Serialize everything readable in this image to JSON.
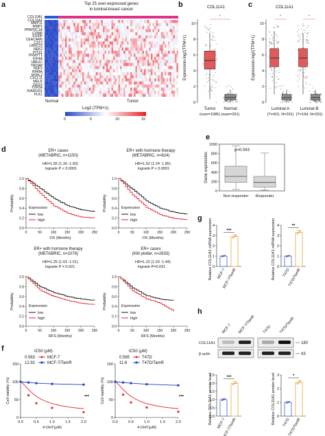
{
  "panel_letters": [
    "a",
    "b",
    "c",
    "d",
    "e",
    "f",
    "g",
    "h"
  ],
  "a": {
    "title_line1": "Top 25 over-expressed genes",
    "title_line2": "in luminal-breast cancer",
    "genes": [
      "COL10A1",
      "COL11A1",
      "MMP11",
      "MMP1",
      "PPAPDC1A",
      "COMP",
      "S100P",
      "CEACAM6",
      "CST2",
      "LRRC15",
      "NEK2",
      "PITX1",
      "PKMYT1",
      "KIF4A",
      "UBE2C",
      "TROAP",
      "NUF2",
      "INHBA",
      "MYBL2",
      "CXCL11",
      "MELK",
      "ISG15",
      "TOP2A",
      "KIAA0101",
      "PLK1"
    ],
    "group_normal": "Normal",
    "group_tumor": "Tumor",
    "legend_title": "Log2 (TPM+1)",
    "legend_ticks": [
      "0",
      "5",
      "10",
      "15"
    ],
    "colors": {
      "normal_bar": "#1f5fd6",
      "tumor_bar": "#e0308a",
      "low": "#2a49c8",
      "high": "#e8202a"
    }
  },
  "b": {
    "title": "COL11A1",
    "ylabel": "Expression-log2(TPM+1)",
    "yticks": [
      "0",
      "2",
      "4",
      "6",
      "8",
      "10"
    ],
    "groups": [
      {
        "name": "Tumor",
        "n": "(num=1085)"
      },
      {
        "name": "Normal",
        "n": "(num=291)"
      }
    ],
    "star": "*"
  },
  "c": {
    "title": "COL11A1",
    "ylabel": "Expression-log2(TPM+1)",
    "yticks": [
      "0",
      "2",
      "4",
      "6",
      "8",
      "10"
    ],
    "groups": [
      {
        "name": "Luminal A",
        "n": "(T=415, N=291)"
      },
      {
        "name": "Luminal B",
        "n": "(T=194, N=291)"
      }
    ],
    "star": "*"
  },
  "e": {
    "ylabel": "Gene expression",
    "pvalue": "p=0.043",
    "yticks": [
      "0",
      "200",
      "400",
      "600",
      "800",
      "1000"
    ],
    "groups": [
      "Non-responder",
      "Responder"
    ]
  },
  "d": {
    "km": [
      {
        "title1": "ER+ cases",
        "title2": "(METABRIC, n=1150)",
        "hr": "HR=1.55 (1.30 -1.83)",
        "logrank": "logrank P < 0.0001",
        "xlabel": "OS (Months)"
      },
      {
        "title1": "ER+ with hormone therapy",
        "title2": "(METABRIC, n=824)",
        "hr": "HR=1.52 (1.24 -1.85)",
        "logrank": "logrank P < 0.0001",
        "xlabel": "OS (Months)"
      },
      {
        "title1": "ER+ with hormone therapy",
        "title2": "(METABRIC, n=1076)",
        "hr": "HR=1.25 (1.03 -1.51)",
        "logrank": "logrank P = 0.021",
        "xlabel": "RFS (Months)"
      },
      {
        "title1": "ER+ cases",
        "title2": "(KM plotter, n=2633)",
        "hr": "HR=1.22 (1.03 -1.44)",
        "logrank": "logrank P=0.021",
        "xlabel": "RFS (Months)"
      }
    ],
    "ylabel": "Probability",
    "yticks": [
      "0.0",
      "0.2",
      "0.4",
      "0.6",
      "0.8",
      "1.0"
    ],
    "xticks": [
      "0",
      "50",
      "100",
      "150",
      "200",
      "250"
    ],
    "legend_title": "Expression",
    "legend_low": "low",
    "legend_high": "high"
  },
  "f": {
    "ylabel": "Cell viability (%)",
    "xlabel": "4-OHT(μM)",
    "yticks": [
      "0",
      "50",
      "100",
      "150"
    ],
    "xticks": [
      "0.0",
      "0.5",
      "1.0",
      "1.5",
      "2.0"
    ],
    "stars": "***",
    "left": {
      "ic50": "IC50 (μM)",
      "row1_val": "0.563",
      "row1_name": "MCF-7",
      "row2_val": "12.92",
      "row2_name": "MCF-7/TamR"
    },
    "right": {
      "ic50": "IC50 (μM)",
      "row1_val": "0.565",
      "row1_name": "T47D",
      "row2_val": "11.6",
      "row2_name": "T47D/TamR"
    }
  },
  "g": {
    "ylabel": "Relative COL11A1 mRNA expression",
    "left": {
      "labels": [
        "MCF-7",
        "MCF-7/TamR"
      ],
      "yticks": [
        "0",
        "1",
        "2",
        "3",
        "4"
      ],
      "stars": "***",
      "values": [
        1.0,
        2.9
      ]
    },
    "right": {
      "labels": [
        "T47D",
        "T47D/TamR"
      ],
      "yticks": [
        "0",
        "1",
        "2",
        "3",
        "4"
      ],
      "stars": "**",
      "values": [
        1.0,
        3.3
      ]
    }
  },
  "h": {
    "lanes": [
      "MCF-7",
      "MCF-7/TamR",
      "T47D",
      "T47D/TamR"
    ],
    "bands": [
      "COL11A1",
      "β-actin"
    ],
    "kda": [
      "180",
      "43"
    ],
    "ylabel": "Relative COL11A1 protein level",
    "left": {
      "labels": [
        "MCF-7",
        "MCF-7/TamR"
      ],
      "yticks": [
        "0.0",
        "0.5",
        "1.0",
        "1.5",
        "2.0",
        "2.5"
      ],
      "stars": "***",
      "values": [
        1.0,
        1.98
      ]
    },
    "right": {
      "labels": [
        "T47D",
        "T47D/TamR"
      ],
      "yticks": [
        "0",
        "1",
        "2",
        "3"
      ],
      "stars": "*",
      "values": [
        1.0,
        2.45
      ]
    }
  },
  "chart_data": [
    {
      "type": "line",
      "title": "ER+ cases (METABRIC, n=1150)",
      "xlabel": "OS (Months)",
      "ylabel": "Probability",
      "xlim": [
        0,
        250
      ],
      "ylim": [
        0,
        1
      ],
      "series": [
        {
          "name": "low",
          "x": [
            0,
            50,
            100,
            150,
            200,
            250
          ],
          "y": [
            1.0,
            0.8,
            0.6,
            0.45,
            0.37,
            0.33
          ]
        },
        {
          "name": "high",
          "x": [
            0,
            50,
            100,
            150,
            200,
            250
          ],
          "y": [
            1.0,
            0.7,
            0.45,
            0.3,
            0.22,
            0.2
          ]
        }
      ]
    },
    {
      "type": "line",
      "title": "ER+ with hormone therapy (METABRIC, n=824)",
      "xlabel": "OS (Months)",
      "ylabel": "Probability",
      "xlim": [
        0,
        250
      ],
      "ylim": [
        0,
        1
      ],
      "series": [
        {
          "name": "low",
          "x": [
            0,
            50,
            100,
            150,
            200,
            250
          ],
          "y": [
            1.0,
            0.78,
            0.55,
            0.4,
            0.32,
            0.28
          ]
        },
        {
          "name": "high",
          "x": [
            0,
            50,
            100,
            150,
            200,
            250
          ],
          "y": [
            1.0,
            0.67,
            0.42,
            0.27,
            0.19,
            0.17
          ]
        }
      ]
    },
    {
      "type": "line",
      "title": "ER+ with hormone therapy (METABRIC, n=1076)",
      "xlabel": "RFS (Months)",
      "ylabel": "Probability",
      "xlim": [
        0,
        250
      ],
      "ylim": [
        0,
        1
      ],
      "series": [
        {
          "name": "low",
          "x": [
            0,
            50,
            100,
            150,
            200,
            250
          ],
          "y": [
            1.0,
            0.8,
            0.68,
            0.6,
            0.55,
            0.52
          ]
        },
        {
          "name": "high",
          "x": [
            0,
            50,
            100,
            150,
            200,
            250
          ],
          "y": [
            1.0,
            0.73,
            0.6,
            0.52,
            0.46,
            0.44
          ]
        }
      ]
    },
    {
      "type": "line",
      "title": "ER+ cases (KM plotter, n=2633)",
      "xlabel": "RFS (Months)",
      "ylabel": "Probability",
      "xlim": [
        0,
        250
      ],
      "ylim": [
        0,
        1
      ],
      "series": [
        {
          "name": "low",
          "x": [
            0,
            50,
            100,
            150,
            200
          ],
          "y": [
            1.0,
            0.78,
            0.62,
            0.55,
            0.52
          ]
        },
        {
          "name": "high",
          "x": [
            0,
            50,
            100,
            150,
            200
          ],
          "y": [
            1.0,
            0.72,
            0.55,
            0.47,
            0.3
          ]
        }
      ]
    },
    {
      "type": "line",
      "title": "",
      "xlabel": "4-OHT(μM)",
      "ylabel": "Cell viability (%)",
      "xlim": [
        0,
        2.0
      ],
      "ylim": [
        0,
        150
      ],
      "series": [
        {
          "name": "MCF-7",
          "x": [
            0,
            0.25,
            0.5,
            1.0,
            2.0
          ],
          "y": [
            100,
            62,
            40,
            27,
            15
          ]
        },
        {
          "name": "MCF-7/TamR",
          "x": [
            0,
            0.25,
            0.5,
            1.0,
            2.0
          ],
          "y": [
            100,
            98,
            96,
            94,
            92
          ]
        }
      ]
    },
    {
      "type": "line",
      "title": "",
      "xlabel": "4-OHT(μM)",
      "ylabel": "Cell viability (%)",
      "xlim": [
        0,
        2.0
      ],
      "ylim": [
        0,
        150
      ],
      "series": [
        {
          "name": "T47D",
          "x": [
            0,
            0.25,
            0.5,
            1.0,
            2.0
          ],
          "y": [
            100,
            64,
            42,
            28,
            16
          ]
        },
        {
          "name": "T47D/TamR",
          "x": [
            0,
            0.25,
            0.5,
            1.0,
            2.0
          ],
          "y": [
            100,
            98,
            96,
            93,
            90
          ]
        }
      ]
    },
    {
      "type": "bar",
      "categories": [
        "MCF-7",
        "MCF-7/TamR"
      ],
      "values": [
        1.0,
        2.9
      ],
      "ylabel": "Relative COL11A1 mRNA expression",
      "ylim": [
        0,
        4
      ]
    },
    {
      "type": "bar",
      "categories": [
        "T47D",
        "T47D/TamR"
      ],
      "values": [
        1.0,
        3.3
      ],
      "ylabel": "Relative COL11A1 mRNA expression",
      "ylim": [
        0,
        4
      ]
    },
    {
      "type": "bar",
      "categories": [
        "MCF-7",
        "MCF-7/TamR"
      ],
      "values": [
        1.0,
        1.98
      ],
      "ylabel": "Relative COL11A1 protein level",
      "ylim": [
        0,
        2.5
      ]
    },
    {
      "type": "bar",
      "categories": [
        "T47D",
        "T47D/TamR"
      ],
      "values": [
        1.0,
        2.45
      ],
      "ylabel": "Relative COL11A1 protein level",
      "ylim": [
        0,
        3
      ]
    }
  ]
}
